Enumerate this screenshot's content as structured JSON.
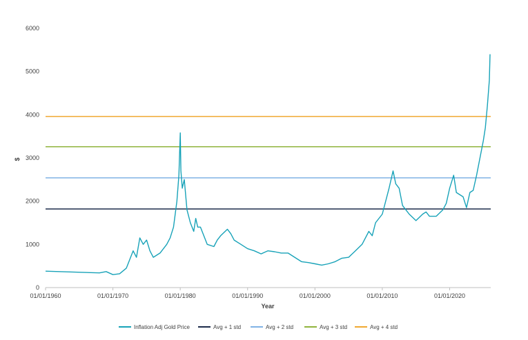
{
  "chart_data": {
    "type": "line",
    "xlabel": "Year",
    "ylabel": "$",
    "ylim": [
      0,
      6000
    ],
    "yticks": [
      0,
      1000,
      2000,
      3000,
      4000,
      5000,
      6000
    ],
    "xticks": [
      "01/01/1960",
      "01/01/1970",
      "01/01/1980",
      "01/01/1990",
      "01/01/2000",
      "01/01/2010",
      "01/01/2020"
    ],
    "xlim": [
      1960,
      2026.1
    ],
    "legend_position": "bottom",
    "grid": false,
    "series": [
      {
        "name": "Inflation Adj Gold Price",
        "color": "#17a2b8",
        "x": [
          1960,
          1962,
          1964,
          1966,
          1968,
          1969,
          1970,
          1971,
          1972,
          1973,
          1973.5,
          1974,
          1974.5,
          1975,
          1975.5,
          1976,
          1976.5,
          1977,
          1977.5,
          1978,
          1978.5,
          1979,
          1979.5,
          1979.8,
          1980.0,
          1980.1,
          1980.3,
          1980.6,
          1981,
          1981.5,
          1982,
          1982.3,
          1982.6,
          1983,
          1983.5,
          1984,
          1985,
          1985.5,
          1986,
          1987,
          1987.5,
          1988,
          1989,
          1990,
          1991,
          1992,
          1993,
          1994,
          1995,
          1996,
          1997,
          1998,
          1999,
          2000,
          2001,
          2002,
          2003,
          2004,
          2005,
          2006,
          2007,
          2008,
          2008.5,
          2009,
          2010,
          2011,
          2011.6,
          2012,
          2012.5,
          2013,
          2013.5,
          2014,
          2015,
          2016,
          2016.5,
          2017,
          2018,
          2019,
          2019.5,
          2020,
          2020.6,
          2021,
          2022,
          2022.5,
          2023,
          2023.5,
          2024,
          2024.5,
          2025,
          2025.3,
          2025.6,
          2025.9,
          2026.0
        ],
        "values": [
          380,
          370,
          360,
          350,
          340,
          370,
          300,
          320,
          450,
          850,
          700,
          1150,
          1000,
          1100,
          850,
          700,
          750,
          800,
          900,
          1000,
          1150,
          1400,
          2000,
          2600,
          3580,
          2700,
          2300,
          2500,
          1800,
          1500,
          1300,
          1600,
          1400,
          1400,
          1200,
          1000,
          950,
          1100,
          1200,
          1350,
          1250,
          1100,
          1000,
          900,
          850,
          780,
          850,
          830,
          800,
          800,
          700,
          600,
          580,
          550,
          520,
          550,
          600,
          680,
          700,
          850,
          1000,
          1300,
          1200,
          1500,
          1700,
          2300,
          2700,
          2400,
          2300,
          1900,
          1800,
          1700,
          1550,
          1700,
          1750,
          1650,
          1650,
          1800,
          1950,
          2300,
          2600,
          2200,
          2100,
          1850,
          2200,
          2250,
          2600,
          3000,
          3400,
          3700,
          4200,
          4800,
          5400
        ]
      },
      {
        "name": "Avg + 1 std",
        "color": "#1b2a4a",
        "value": 1820
      },
      {
        "name": "Avg + 2 std",
        "color": "#7fb2e5",
        "value": 2540
      },
      {
        "name": "Avg + 3 std",
        "color": "#8fb33b",
        "value": 3260
      },
      {
        "name": "Avg + 4 std",
        "color": "#f0a830",
        "value": 3960
      }
    ]
  }
}
